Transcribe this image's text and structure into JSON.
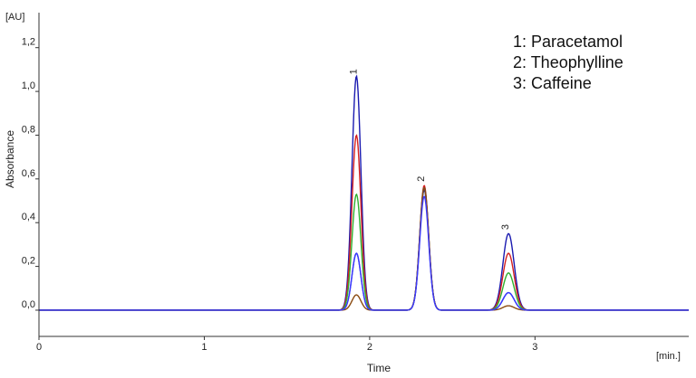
{
  "chart_data": {
    "type": "line",
    "title": "",
    "xlabel": "Time",
    "ylabel": "Absorbance",
    "x_unit_label": "[min.]",
    "y_unit_label": "[AU]",
    "xlim": [
      0,
      3.93
    ],
    "ylim": [
      -0.12,
      1.36
    ],
    "x_ticks": [
      0,
      1,
      2,
      3
    ],
    "x_tick_labels": [
      "0",
      "1",
      "2",
      "3"
    ],
    "y_ticks": [
      0.0,
      0.2,
      0.4,
      0.6,
      0.8,
      1.0,
      1.2
    ],
    "y_tick_labels": [
      "0,0",
      "0,2",
      "0,4",
      "0,6",
      "0,8",
      "1,0",
      "1,2"
    ],
    "grid": false,
    "legend_position": "top-right",
    "legend": [
      "1: Paracetamol",
      "2: Theophylline",
      "3: Caffeine"
    ],
    "peak_labels": [
      {
        "text": "1",
        "x": 1.92,
        "y": 1.09
      },
      {
        "text": "2",
        "x": 2.33,
        "y": 0.6
      },
      {
        "text": "3",
        "x": 2.84,
        "y": 0.38
      }
    ],
    "peak_times": [
      1.92,
      2.33,
      2.84
    ],
    "peak_widths": [
      0.027,
      0.027,
      0.034
    ],
    "series": [
      {
        "color": "#1a1ab0",
        "peak_heights": [
          1.07,
          0.55,
          0.35
        ]
      },
      {
        "color": "#d42020",
        "peak_heights": [
          0.8,
          0.57,
          0.26
        ]
      },
      {
        "color": "#30b030",
        "peak_heights": [
          0.53,
          0.56,
          0.17
        ]
      },
      {
        "color": "#3030c8",
        "peak_heights": [
          0.26,
          0.56,
          0.08
        ]
      },
      {
        "color": "#8a4a10",
        "peak_heights": [
          0.07,
          0.56,
          0.02
        ]
      },
      {
        "color": "#3a3aff",
        "peak_heights": [
          0.26,
          0.52,
          0.08
        ]
      }
    ]
  }
}
